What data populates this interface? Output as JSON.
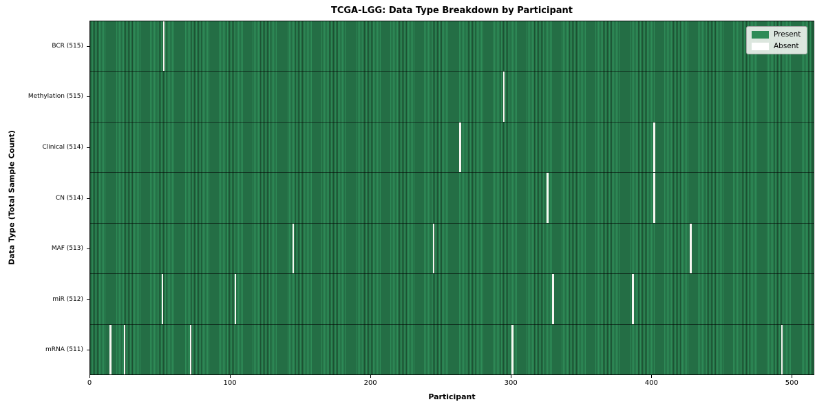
{
  "chart_data": {
    "type": "heatmap",
    "title": "TCGA-LGG: Data Type Breakdown by Participant",
    "xlabel": "Participant",
    "ylabel": "Data Type (Total Sample Count)",
    "x_ticks": [
      0,
      100,
      200,
      300,
      400,
      500
    ],
    "x_range": [
      0,
      516
    ],
    "n_participants": 516,
    "grid": false,
    "legend_position": "upper right",
    "colors": {
      "present": "#2e8b57",
      "present_bar_edge": "#1a4e31",
      "absent": "#ffffff",
      "row_divider": "#1a1a1a",
      "axis": "#000000",
      "legend_background": "#ecf0ec"
    },
    "legend": [
      {
        "label": "Present",
        "color": "#2e8b57"
      },
      {
        "label": "Absent",
        "color": "#ffffff"
      }
    ],
    "rows": [
      {
        "label": "BCR (515)",
        "data_type": "BCR",
        "present_count": 515,
        "absent_count": 1,
        "absent_participants": [
          52
        ]
      },
      {
        "label": "Methylation (515)",
        "data_type": "Methylation",
        "present_count": 515,
        "absent_count": 1,
        "absent_participants": [
          294
        ]
      },
      {
        "label": "Clinical (514)",
        "data_type": "Clinical",
        "present_count": 514,
        "absent_count": 2,
        "absent_participants": [
          263,
          401
        ]
      },
      {
        "label": "CN (514)",
        "data_type": "CN",
        "present_count": 514,
        "absent_count": 2,
        "absent_participants": [
          325,
          401
        ]
      },
      {
        "label": "MAF (513)",
        "data_type": "MAF",
        "present_count": 513,
        "absent_count": 3,
        "absent_participants": [
          144,
          244,
          427
        ]
      },
      {
        "label": "miR (512)",
        "data_type": "miR",
        "present_count": 512,
        "absent_count": 4,
        "absent_participants": [
          51,
          103,
          329,
          386
        ]
      },
      {
        "label": "mRNA (511)",
        "data_type": "mRNA",
        "present_count": 511,
        "absent_count": 5,
        "absent_participants": [
          14,
          24,
          71,
          300,
          492
        ]
      }
    ]
  }
}
